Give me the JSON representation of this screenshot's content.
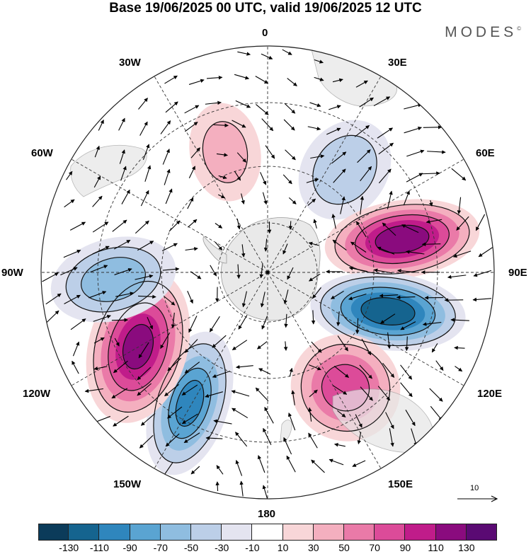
{
  "title": "Base 19/06/2025 00 UTC, valid 19/06/2025 12 UTC",
  "brand": "MODES",
  "brand_mark": "©",
  "longitude_labels": {
    "top": "0",
    "bottom": "180",
    "w30": "30W",
    "w60": "60W",
    "w90": "90W",
    "w120": "120W",
    "w150": "150W",
    "e30": "30E",
    "e60": "60E",
    "e90": "90E",
    "e120": "120E",
    "e150": "150E"
  },
  "reference_vector": "10",
  "colorbar": {
    "colors": [
      "#0b3b5a",
      "#15648f",
      "#2f86bd",
      "#5aa4d2",
      "#8fbde0",
      "#bccfe8",
      "#e4e4f0",
      "#ffffff",
      "#f8d6d8",
      "#f4afbf",
      "#ea7aa8",
      "#dc4b99",
      "#c01c8a",
      "#8a0b7e",
      "#5a0a73"
    ],
    "ticks": [
      "-130",
      "-110",
      "-90",
      "-70",
      "-50",
      "-30",
      "-10",
      "10",
      "30",
      "50",
      "70",
      "90",
      "110",
      "130"
    ]
  },
  "anomaly_centers": [
    {
      "label": "60W-30W",
      "value": 35
    },
    {
      "label": "30E-60E",
      "value": -45
    },
    {
      "label": "75E-90E",
      "value": 120
    },
    {
      "label": "90E-105E",
      "value": -120
    },
    {
      "label": "120E-150E",
      "value": 80
    },
    {
      "label": "150W-180",
      "value": -90
    },
    {
      "label": "105W-135W",
      "value": 110
    },
    {
      "label": "75W-100W",
      "value": -60
    }
  ]
}
